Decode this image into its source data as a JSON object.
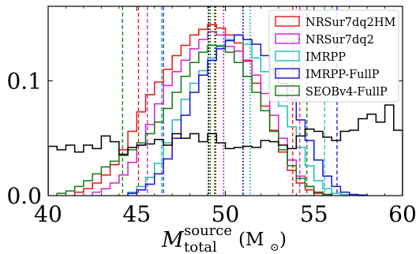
{
  "chart_data": {
    "type": "line",
    "xlabel": {
      "main": "M",
      "sup": "source",
      "sub": "total",
      "unit": "(M",
      "unit_sub": "⊙",
      "unit_close": ")"
    },
    "ylabel": "",
    "xlim": [
      40,
      60
    ],
    "ylim": [
      0.0,
      0.165
    ],
    "xticks": [
      40,
      45,
      50,
      55,
      60
    ],
    "xtick_labels": [
      "40",
      "45",
      "50",
      "55",
      "60"
    ],
    "yticks": [
      0.0,
      0.1
    ],
    "ytick_labels": [
      "0.0",
      "0.1"
    ],
    "grid": false,
    "legend_position": "top-right",
    "series": [
      {
        "name": "NRSur7dq2HM",
        "color": "#ee1111",
        "bin_edges": [
          41.5,
          42.0,
          42.5,
          43.0,
          43.5,
          44.0,
          44.5,
          45.0,
          45.5,
          46.0,
          46.5,
          47.0,
          47.5,
          48.0,
          48.5,
          49.0,
          49.5,
          50.0,
          50.5,
          51.0,
          51.5,
          52.0,
          52.5,
          53.0,
          53.5,
          54.0,
          54.5,
          55.0,
          55.5,
          56.0
        ],
        "values": [
          0.003,
          0.006,
          0.011,
          0.018,
          0.027,
          0.04,
          0.056,
          0.073,
          0.088,
          0.099,
          0.11,
          0.122,
          0.131,
          0.14,
          0.145,
          0.149,
          0.146,
          0.14,
          0.133,
          0.118,
          0.098,
          0.078,
          0.057,
          0.038,
          0.022,
          0.011,
          0.005,
          0.002,
          0.001
        ],
        "ci_90": [
          45.1,
          53.8
        ]
      },
      {
        "name": "NRSur7dq2",
        "color": "#cc22cc",
        "bin_edges": [
          42.5,
          43.0,
          43.5,
          44.0,
          44.5,
          45.0,
          45.5,
          46.0,
          46.5,
          47.0,
          47.5,
          48.0,
          48.5,
          49.0,
          49.5,
          50.0,
          50.5,
          51.0,
          51.5,
          52.0,
          52.5,
          53.0,
          53.5,
          54.0,
          54.5,
          55.0,
          55.5,
          56.0
        ],
        "values": [
          0.003,
          0.006,
          0.011,
          0.018,
          0.029,
          0.044,
          0.062,
          0.08,
          0.096,
          0.108,
          0.118,
          0.128,
          0.136,
          0.143,
          0.14,
          0.13,
          0.126,
          0.117,
          0.105,
          0.089,
          0.07,
          0.05,
          0.031,
          0.017,
          0.008,
          0.003,
          0.001
        ],
        "ci_90": [
          45.6,
          54.2
        ]
      },
      {
        "name": "IMRPP",
        "color": "#22bbbb",
        "bin_edges": [
          44.5,
          45.0,
          45.5,
          46.0,
          46.5,
          47.0,
          47.5,
          48.0,
          48.5,
          49.0,
          49.5,
          50.0,
          50.5,
          51.0,
          51.5,
          52.0,
          52.5,
          53.0,
          53.5,
          54.0,
          54.5,
          55.0,
          55.5,
          56.0,
          56.5,
          57.0
        ],
        "values": [
          0.003,
          0.008,
          0.016,
          0.028,
          0.046,
          0.066,
          0.084,
          0.098,
          0.109,
          0.12,
          0.131,
          0.136,
          0.14,
          0.132,
          0.12,
          0.108,
          0.094,
          0.078,
          0.06,
          0.042,
          0.026,
          0.013,
          0.006,
          0.002,
          0.001
        ],
        "ci_90": [
          46.4,
          55.6
        ]
      },
      {
        "name": "IMRPP-FullP",
        "color": "#1111dd",
        "bin_edges": [
          44.5,
          45.0,
          45.5,
          46.0,
          46.5,
          47.0,
          47.5,
          48.0,
          48.5,
          49.0,
          49.5,
          50.0,
          50.5,
          51.0,
          51.5,
          52.0,
          52.5,
          53.0,
          53.5,
          54.0,
          54.5,
          55.0,
          55.5,
          56.0,
          56.5,
          57.0,
          57.5,
          58.0
        ],
        "values": [
          0.002,
          0.005,
          0.01,
          0.019,
          0.032,
          0.05,
          0.07,
          0.09,
          0.105,
          0.118,
          0.128,
          0.135,
          0.14,
          0.136,
          0.132,
          0.122,
          0.11,
          0.098,
          0.084,
          0.066,
          0.048,
          0.031,
          0.017,
          0.008,
          0.003,
          0.001,
          0.0005
        ],
        "ci_90": [
          46.5,
          56.3
        ]
      },
      {
        "name": "SEOBv4-FullP",
        "color": "#117711",
        "bin_edges": [
          40.5,
          41.0,
          41.5,
          42.0,
          42.5,
          43.0,
          43.5,
          44.0,
          44.5,
          45.0,
          45.5,
          46.0,
          46.5,
          47.0,
          47.5,
          48.0,
          48.5,
          49.0,
          49.5,
          50.0,
          50.5,
          51.0,
          51.5,
          52.0,
          52.5,
          53.0,
          53.5,
          54.0,
          54.5,
          55.0,
          55.5,
          56.0
        ],
        "values": [
          0.002,
          0.004,
          0.008,
          0.013,
          0.019,
          0.025,
          0.03,
          0.035,
          0.04,
          0.046,
          0.054,
          0.064,
          0.076,
          0.09,
          0.104,
          0.116,
          0.125,
          0.131,
          0.13,
          0.125,
          0.116,
          0.104,
          0.09,
          0.074,
          0.056,
          0.04,
          0.026,
          0.015,
          0.008,
          0.003,
          0.001
        ],
        "ci_90": [
          44.2,
          54.6
        ]
      },
      {
        "name": "",
        "color": "#000000",
        "bin_edges": [
          40.0,
          40.5,
          41.0,
          41.5,
          42.0,
          42.5,
          43.0,
          43.5,
          44.0,
          44.5,
          45.0,
          45.5,
          46.0,
          46.5,
          47.0,
          47.5,
          48.0,
          48.5,
          49.0,
          49.5,
          50.0,
          50.5,
          51.0,
          51.5,
          52.0,
          52.5,
          53.0,
          53.5,
          54.0,
          54.5,
          55.0,
          55.5,
          56.0,
          56.5,
          57.0,
          57.5,
          58.0,
          58.5,
          59.0,
          59.5,
          60.0
        ],
        "values": [
          0.043,
          0.04,
          0.044,
          0.038,
          0.044,
          0.041,
          0.052,
          0.047,
          0.036,
          0.042,
          0.044,
          0.045,
          0.049,
          0.044,
          0.054,
          0.05,
          0.054,
          0.047,
          0.054,
          0.046,
          0.041,
          0.042,
          0.043,
          0.042,
          0.048,
          0.047,
          0.044,
          0.041,
          0.052,
          0.058,
          0.056,
          0.051,
          0.048,
          0.056,
          0.057,
          0.067,
          0.071,
          0.064,
          0.079,
          0.057
        ]
      }
    ],
    "markers": [
      {
        "series": "combined",
        "x": 49.05,
        "color": "#000000"
      },
      {
        "series": "combined",
        "x": 49.15,
        "color": "#117711"
      }
    ]
  }
}
